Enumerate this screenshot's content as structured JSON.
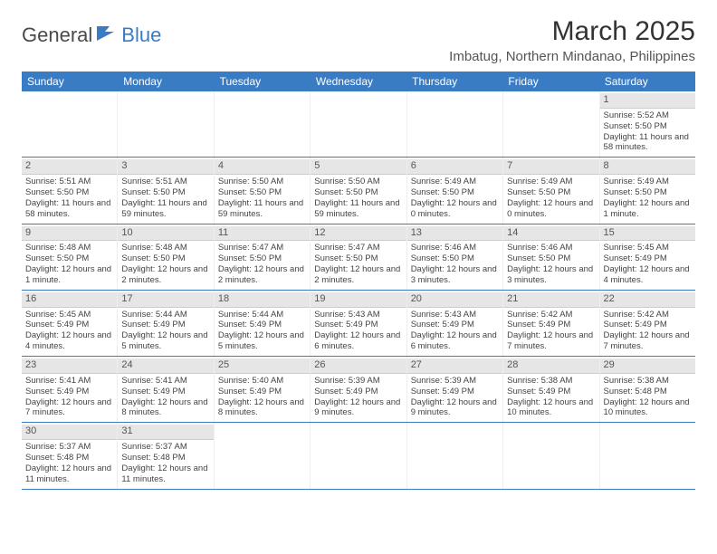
{
  "logo": {
    "textA": "General",
    "textB": "Blue"
  },
  "title": "March 2025",
  "location": "Imbatug, Northern Mindanao, Philippines",
  "accent_color": "#3a7cc4",
  "dayheaders": [
    "Sunday",
    "Monday",
    "Tuesday",
    "Wednesday",
    "Thursday",
    "Friday",
    "Saturday"
  ],
  "weeks": [
    [
      null,
      null,
      null,
      null,
      null,
      null,
      {
        "n": "1",
        "sr": "5:52 AM",
        "ss": "5:50 PM",
        "dl": "11 hours and 58 minutes."
      }
    ],
    [
      {
        "n": "2",
        "sr": "5:51 AM",
        "ss": "5:50 PM",
        "dl": "11 hours and 58 minutes."
      },
      {
        "n": "3",
        "sr": "5:51 AM",
        "ss": "5:50 PM",
        "dl": "11 hours and 59 minutes."
      },
      {
        "n": "4",
        "sr": "5:50 AM",
        "ss": "5:50 PM",
        "dl": "11 hours and 59 minutes."
      },
      {
        "n": "5",
        "sr": "5:50 AM",
        "ss": "5:50 PM",
        "dl": "11 hours and 59 minutes."
      },
      {
        "n": "6",
        "sr": "5:49 AM",
        "ss": "5:50 PM",
        "dl": "12 hours and 0 minutes."
      },
      {
        "n": "7",
        "sr": "5:49 AM",
        "ss": "5:50 PM",
        "dl": "12 hours and 0 minutes."
      },
      {
        "n": "8",
        "sr": "5:49 AM",
        "ss": "5:50 PM",
        "dl": "12 hours and 1 minute."
      }
    ],
    [
      {
        "n": "9",
        "sr": "5:48 AM",
        "ss": "5:50 PM",
        "dl": "12 hours and 1 minute."
      },
      {
        "n": "10",
        "sr": "5:48 AM",
        "ss": "5:50 PM",
        "dl": "12 hours and 2 minutes."
      },
      {
        "n": "11",
        "sr": "5:47 AM",
        "ss": "5:50 PM",
        "dl": "12 hours and 2 minutes."
      },
      {
        "n": "12",
        "sr": "5:47 AM",
        "ss": "5:50 PM",
        "dl": "12 hours and 2 minutes."
      },
      {
        "n": "13",
        "sr": "5:46 AM",
        "ss": "5:50 PM",
        "dl": "12 hours and 3 minutes."
      },
      {
        "n": "14",
        "sr": "5:46 AM",
        "ss": "5:50 PM",
        "dl": "12 hours and 3 minutes."
      },
      {
        "n": "15",
        "sr": "5:45 AM",
        "ss": "5:49 PM",
        "dl": "12 hours and 4 minutes."
      }
    ],
    [
      {
        "n": "16",
        "sr": "5:45 AM",
        "ss": "5:49 PM",
        "dl": "12 hours and 4 minutes."
      },
      {
        "n": "17",
        "sr": "5:44 AM",
        "ss": "5:49 PM",
        "dl": "12 hours and 5 minutes."
      },
      {
        "n": "18",
        "sr": "5:44 AM",
        "ss": "5:49 PM",
        "dl": "12 hours and 5 minutes."
      },
      {
        "n": "19",
        "sr": "5:43 AM",
        "ss": "5:49 PM",
        "dl": "12 hours and 6 minutes."
      },
      {
        "n": "20",
        "sr": "5:43 AM",
        "ss": "5:49 PM",
        "dl": "12 hours and 6 minutes."
      },
      {
        "n": "21",
        "sr": "5:42 AM",
        "ss": "5:49 PM",
        "dl": "12 hours and 7 minutes."
      },
      {
        "n": "22",
        "sr": "5:42 AM",
        "ss": "5:49 PM",
        "dl": "12 hours and 7 minutes."
      }
    ],
    [
      {
        "n": "23",
        "sr": "5:41 AM",
        "ss": "5:49 PM",
        "dl": "12 hours and 7 minutes."
      },
      {
        "n": "24",
        "sr": "5:41 AM",
        "ss": "5:49 PM",
        "dl": "12 hours and 8 minutes."
      },
      {
        "n": "25",
        "sr": "5:40 AM",
        "ss": "5:49 PM",
        "dl": "12 hours and 8 minutes."
      },
      {
        "n": "26",
        "sr": "5:39 AM",
        "ss": "5:49 PM",
        "dl": "12 hours and 9 minutes."
      },
      {
        "n": "27",
        "sr": "5:39 AM",
        "ss": "5:49 PM",
        "dl": "12 hours and 9 minutes."
      },
      {
        "n": "28",
        "sr": "5:38 AM",
        "ss": "5:49 PM",
        "dl": "12 hours and 10 minutes."
      },
      {
        "n": "29",
        "sr": "5:38 AM",
        "ss": "5:48 PM",
        "dl": "12 hours and 10 minutes."
      }
    ],
    [
      {
        "n": "30",
        "sr": "5:37 AM",
        "ss": "5:48 PM",
        "dl": "12 hours and 11 minutes."
      },
      {
        "n": "31",
        "sr": "5:37 AM",
        "ss": "5:48 PM",
        "dl": "12 hours and 11 minutes."
      },
      null,
      null,
      null,
      null,
      null
    ]
  ],
  "labels": {
    "sunrise": "Sunrise:",
    "sunset": "Sunset:",
    "daylight": "Daylight:"
  }
}
